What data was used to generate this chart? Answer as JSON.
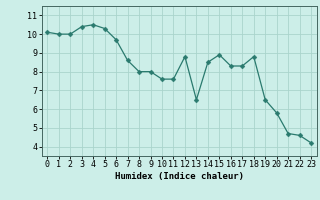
{
  "x": [
    0,
    1,
    2,
    3,
    4,
    5,
    6,
    7,
    8,
    9,
    10,
    11,
    12,
    13,
    14,
    15,
    16,
    17,
    18,
    19,
    20,
    21,
    22,
    23
  ],
  "y": [
    10.1,
    10.0,
    10.0,
    10.4,
    10.5,
    10.3,
    9.7,
    8.6,
    8.0,
    8.0,
    7.6,
    7.6,
    8.8,
    6.5,
    8.5,
    8.9,
    8.3,
    8.3,
    8.8,
    6.5,
    5.8,
    4.7,
    4.6,
    4.2
  ],
  "line_color": "#2a7a6e",
  "marker": "D",
  "marker_size": 2.5,
  "bg_color": "#cceee8",
  "grid_color": "#aad4cc",
  "xlabel": "Humidex (Indice chaleur)",
  "ylabel": "",
  "xlim": [
    -0.5,
    23.5
  ],
  "ylim": [
    3.5,
    11.5
  ],
  "yticks": [
    4,
    5,
    6,
    7,
    8,
    9,
    10,
    11
  ],
  "xticks": [
    0,
    1,
    2,
    3,
    4,
    5,
    6,
    7,
    8,
    9,
    10,
    11,
    12,
    13,
    14,
    15,
    16,
    17,
    18,
    19,
    20,
    21,
    22,
    23
  ],
  "axis_fontsize": 6.5,
  "tick_fontsize": 6.0,
  "xlabel_fontsize": 6.5
}
